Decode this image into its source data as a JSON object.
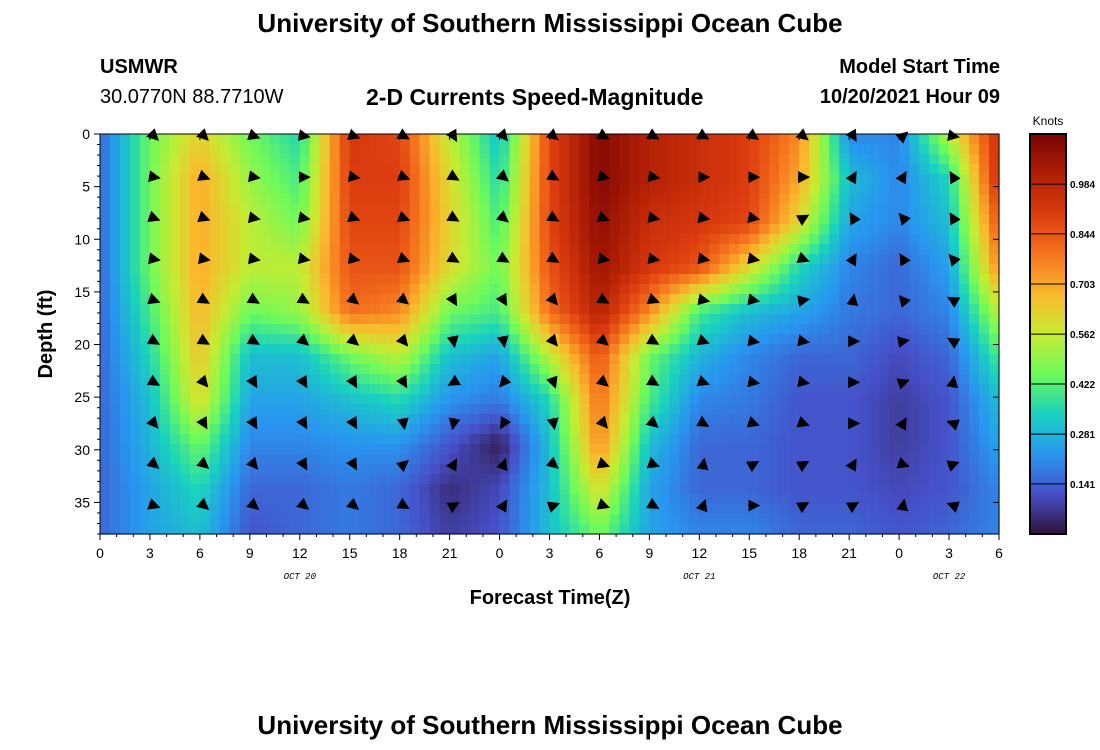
{
  "header": {
    "title": "University of Southern Mississippi Ocean Cube",
    "station": "USMWR",
    "coords": "30.0770N  88.7710W",
    "subtitle": "2-D Currents Speed-Magnitude",
    "model_label": "Model Start Time",
    "model_time": "10/20/2021 Hour 09"
  },
  "footer": {
    "title": "University of Southern Mississippi Ocean Cube"
  },
  "chart_data": {
    "type": "heatmap",
    "title": "2-D Currents Speed-Magnitude",
    "xlabel": "Forecast Time(Z)",
    "ylabel": "Depth (ft)",
    "colorbar_label": "Knots",
    "colorbar_ticks": [
      "0.141",
      "0.281",
      "0.422",
      "0.562",
      "0.703",
      "0.844",
      "0.984"
    ],
    "colorbar_range": [
      0,
      1.125
    ],
    "x_range_hours": [
      0,
      54
    ],
    "y_range_ft": [
      0,
      38
    ],
    "x_tick_labels": [
      "0",
      "3",
      "6",
      "9",
      "12",
      "15",
      "18",
      "21",
      "0",
      "3",
      "6",
      "9",
      "12",
      "15",
      "18",
      "21",
      "0",
      "3",
      "6"
    ],
    "y_tick_labels": [
      "0",
      "5",
      "10",
      "15",
      "20",
      "25",
      "30",
      "35"
    ],
    "date_labels": [
      {
        "text": "OCT 20",
        "hour": 12
      },
      {
        "text": "OCT 21",
        "hour": 36
      },
      {
        "text": "OCT 22",
        "hour": 51
      }
    ],
    "depth_rows_ft": [
      0,
      3.9,
      7.8,
      11.7,
      15.6,
      19.5,
      23.4,
      27.3,
      31.2,
      35.1
    ],
    "vector_hours": [
      3,
      6,
      9,
      12,
      15,
      18,
      21,
      24,
      27,
      30,
      33,
      36,
      39,
      42,
      45,
      48,
      51
    ],
    "speed_field": [
      [
        0.15,
        0.45,
        0.62,
        0.45,
        0.35,
        0.92,
        0.88,
        0.55,
        0.3,
        0.88,
        1.1,
        1.0,
        0.95,
        0.9,
        0.75,
        0.2,
        0.2,
        0.55,
        0.95
      ],
      [
        0.15,
        0.45,
        0.7,
        0.5,
        0.4,
        0.9,
        0.9,
        0.6,
        0.35,
        0.88,
        1.1,
        1.0,
        0.95,
        0.9,
        0.7,
        0.3,
        0.2,
        0.35,
        0.95
      ],
      [
        0.15,
        0.45,
        0.7,
        0.55,
        0.45,
        0.88,
        0.88,
        0.62,
        0.4,
        0.88,
        1.08,
        0.95,
        0.92,
        0.88,
        0.6,
        0.25,
        0.2,
        0.3,
        0.85
      ],
      [
        0.15,
        0.45,
        0.7,
        0.55,
        0.55,
        0.85,
        0.85,
        0.6,
        0.45,
        0.85,
        1.05,
        0.92,
        0.85,
        0.6,
        0.35,
        0.2,
        0.15,
        0.25,
        0.75
      ],
      [
        0.15,
        0.4,
        0.68,
        0.45,
        0.5,
        0.8,
        0.75,
        0.45,
        0.4,
        0.8,
        1.0,
        0.75,
        0.4,
        0.3,
        0.25,
        0.18,
        0.15,
        0.2,
        0.55
      ],
      [
        0.15,
        0.35,
        0.65,
        0.3,
        0.3,
        0.45,
        0.55,
        0.3,
        0.25,
        0.55,
        0.85,
        0.45,
        0.28,
        0.2,
        0.15,
        0.15,
        0.1,
        0.15,
        0.4
      ],
      [
        0.15,
        0.3,
        0.6,
        0.25,
        0.25,
        0.3,
        0.35,
        0.22,
        0.18,
        0.35,
        0.8,
        0.4,
        0.2,
        0.18,
        0.12,
        0.12,
        0.08,
        0.12,
        0.3
      ],
      [
        0.15,
        0.28,
        0.45,
        0.2,
        0.2,
        0.22,
        0.22,
        0.12,
        0.02,
        0.3,
        0.75,
        0.3,
        0.15,
        0.15,
        0.12,
        0.12,
        0.08,
        0.12,
        0.25
      ],
      [
        0.15,
        0.25,
        0.35,
        0.15,
        0.15,
        0.18,
        0.15,
        0.05,
        0.1,
        0.3,
        0.6,
        0.25,
        0.15,
        0.15,
        0.12,
        0.12,
        0.1,
        0.12,
        0.2
      ],
      [
        0.15,
        0.25,
        0.3,
        0.12,
        0.15,
        0.18,
        0.15,
        0.08,
        0.12,
        0.3,
        0.45,
        0.25,
        0.2,
        0.2,
        0.15,
        0.15,
        0.12,
        0.15,
        0.2
      ]
    ],
    "vector_angles_deg": [
      [
        0,
        45,
        45,
        20,
        10,
        20,
        30,
        60,
        50,
        40,
        30,
        30,
        30,
        35,
        40,
        60,
        -40,
        10,
        0
      ],
      [
        -10,
        10,
        20,
        10,
        0,
        10,
        20,
        30,
        40,
        30,
        15,
        10,
        0,
        0,
        0,
        -60,
        -60,
        -120,
        0
      ],
      [
        0,
        20,
        20,
        10,
        10,
        20,
        20,
        30,
        40,
        30,
        20,
        10,
        10,
        10,
        -30,
        -120,
        -130,
        -120,
        0
      ],
      [
        0,
        10,
        10,
        10,
        10,
        10,
        20,
        30,
        30,
        30,
        10,
        10,
        10,
        10,
        20,
        -60,
        -120,
        -130,
        0
      ],
      [
        0,
        20,
        30,
        30,
        30,
        40,
        40,
        60,
        60,
        50,
        30,
        20,
        10,
        10,
        -10,
        -80,
        -130,
        -150,
        0
      ],
      [
        0,
        30,
        30,
        30,
        40,
        40,
        50,
        80,
        80,
        50,
        40,
        30,
        20,
        10,
        10,
        0,
        -10,
        -150,
        0
      ],
      [
        0,
        30,
        50,
        60,
        60,
        60,
        60,
        150,
        130,
        70,
        40,
        30,
        20,
        10,
        10,
        0,
        -20,
        -80,
        0
      ],
      [
        0,
        50,
        60,
        60,
        60,
        60,
        80,
        100,
        120,
        80,
        50,
        40,
        30,
        20,
        20,
        0,
        -60,
        -160,
        0
      ],
      [
        0,
        40,
        40,
        50,
        60,
        60,
        -40,
        -60,
        -70,
        40,
        20,
        20,
        -80,
        -30,
        -30,
        -60,
        20,
        -20,
        0
      ],
      [
        0,
        20,
        40,
        40,
        40,
        40,
        30,
        -30,
        -60,
        -20,
        20,
        30,
        -70,
        0,
        -30,
        -30,
        -80,
        -160,
        0
      ]
    ]
  }
}
